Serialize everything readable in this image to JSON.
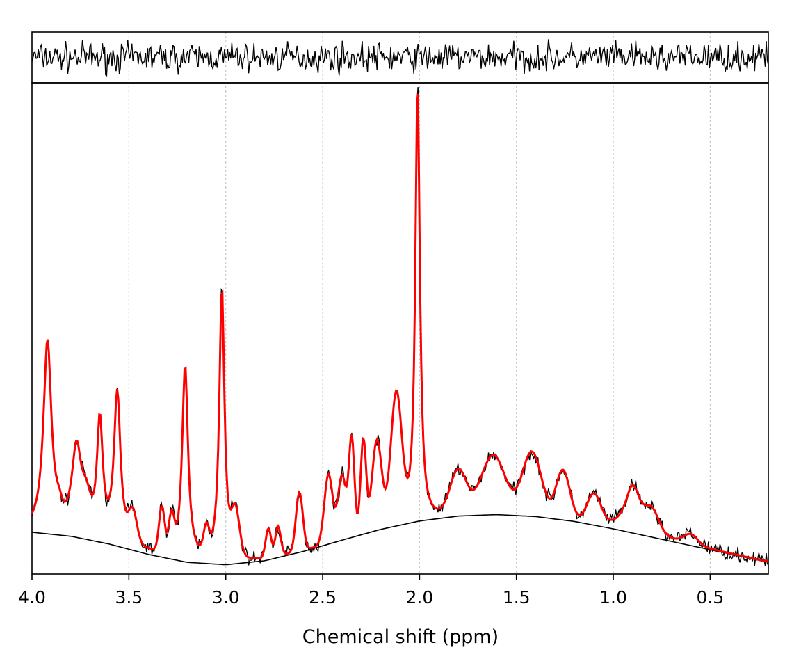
{
  "chart_data": {
    "type": "line",
    "xlabel": "Chemical shift (ppm)",
    "ylabel": "",
    "x_axis": "reversed",
    "xlim": [
      4.0,
      0.2
    ],
    "x_ticks": [
      4.0,
      3.5,
      3.0,
      2.5,
      2.0,
      1.5,
      1.0,
      0.5
    ],
    "x_tick_labels": [
      "4.0",
      "3.5",
      "3.0",
      "2.5",
      "2.0",
      "1.5",
      "1.0",
      "0.5"
    ],
    "grid": "vertical dotted at x ticks",
    "ylim": [
      0,
      1
    ],
    "series": [
      {
        "role": "baseline",
        "color": "#000000",
        "points": [
          [
            4.0,
            0.085
          ],
          [
            3.8,
            0.077
          ],
          [
            3.6,
            0.061
          ],
          [
            3.4,
            0.04
          ],
          [
            3.2,
            0.024
          ],
          [
            3.0,
            0.019
          ],
          [
            2.8,
            0.027
          ],
          [
            2.6,
            0.046
          ],
          [
            2.4,
            0.069
          ],
          [
            2.2,
            0.091
          ],
          [
            2.0,
            0.108
          ],
          [
            1.8,
            0.118
          ],
          [
            1.6,
            0.121
          ],
          [
            1.4,
            0.117
          ],
          [
            1.2,
            0.107
          ],
          [
            1.0,
            0.092
          ],
          [
            0.8,
            0.075
          ],
          [
            0.6,
            0.058
          ],
          [
            0.4,
            0.041
          ],
          [
            0.2,
            0.024
          ]
        ]
      },
      {
        "role": "fit",
        "color": "#ff0000",
        "peaks": [
          {
            "ppm": 3.92,
            "height": 0.47
          },
          {
            "ppm": 3.77,
            "height": 0.25
          },
          {
            "ppm": 3.65,
            "height": 0.3
          },
          {
            "ppm": 3.56,
            "height": 0.36
          },
          {
            "ppm": 3.21,
            "height": 0.42
          },
          {
            "ppm": 3.02,
            "height": 0.58
          },
          {
            "ppm": 2.01,
            "height": 1.0
          },
          {
            "ppm": 0.9,
            "height": 0.18
          }
        ]
      },
      {
        "role": "data",
        "color": "#000000"
      },
      {
        "role": "residual",
        "color": "#000000"
      }
    ]
  }
}
